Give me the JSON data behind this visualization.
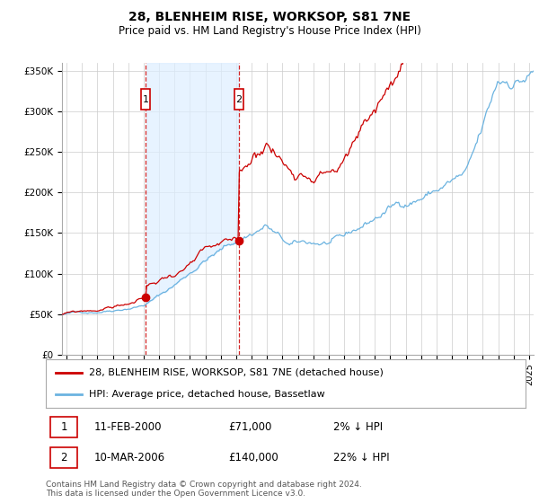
{
  "title": "28, BLENHEIM RISE, WORKSOP, S81 7NE",
  "subtitle": "Price paid vs. HM Land Registry's House Price Index (HPI)",
  "title_fontsize": 10,
  "subtitle_fontsize": 8.5,
  "ylabel_ticks": [
    "£0",
    "£50K",
    "£100K",
    "£150K",
    "£200K",
    "£250K",
    "£300K",
    "£350K"
  ],
  "ylabel_vals": [
    0,
    50000,
    100000,
    150000,
    200000,
    250000,
    300000,
    350000
  ],
  "ylim": [
    0,
    360000
  ],
  "xlim_start": 1994.7,
  "xlim_end": 2025.3,
  "sale1_year": 2000.12,
  "sale1_price": 71000,
  "sale1_label": "1",
  "sale1_date": "11-FEB-2000",
  "sale1_amount": "£71,000",
  "sale1_hpi": "2% ↓ HPI",
  "sale2_year": 2006.19,
  "sale2_price": 140000,
  "sale2_label": "2",
  "sale2_date": "10-MAR-2006",
  "sale2_amount": "£140,000",
  "sale2_hpi": "22% ↓ HPI",
  "red_line_color": "#cc0000",
  "blue_line_color": "#6bb3e0",
  "fill_color": "#ddeeff",
  "vline_color": "#cc0000",
  "background_color": "#ffffff",
  "grid_color": "#cccccc",
  "legend_label_red": "28, BLENHEIM RISE, WORKSOP, S81 7NE (detached house)",
  "legend_label_blue": "HPI: Average price, detached house, Bassetlaw",
  "footnote": "Contains HM Land Registry data © Crown copyright and database right 2024.\nThis data is licensed under the Open Government Licence v3.0."
}
